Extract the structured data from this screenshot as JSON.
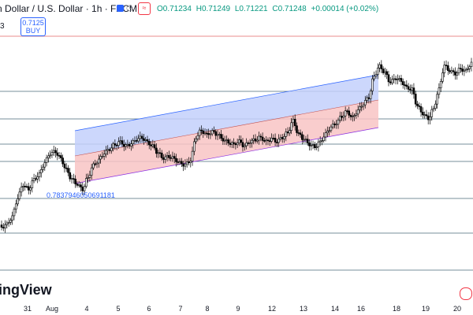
{
  "header": {
    "symbol": "n Dollar / U.S. Dollar · 1h · FXCM",
    "ohlc": {
      "open": "O0.71234",
      "high": "H0.71249",
      "low": "L0.71221",
      "close": "C0.71248",
      "change": "+0.00014 (+0.02%)"
    },
    "side_digit": "3",
    "buy_price": "0.7125",
    "buy_label": "BUY"
  },
  "annotations": {
    "low_value": "0.7837946050691181"
  },
  "watermark": "ingView",
  "colors": {
    "up": "#089981",
    "down": "#f23645",
    "candle": "#000000",
    "channel_upper_fill": "#c3d0fb",
    "channel_lower_fill": "#f8c4c4",
    "channel_border": "#8a2be2",
    "hline": "#4a6a7a",
    "top_line": "#e06666"
  },
  "chart_data": {
    "type": "candlestick",
    "x_tick_labels": [
      "31",
      "Aug",
      "4",
      "5",
      "6",
      "7",
      "8",
      "9",
      "12",
      "13",
      "14",
      "16",
      "18",
      "19",
      "20"
    ],
    "horizontal_levels": [
      "top",
      "l1",
      "l2",
      "l3",
      "l4",
      "l5",
      "l6",
      "l7"
    ],
    "close_series": [
      0.4,
      0.5,
      0.8,
      1.6,
      2.2,
      2.0,
      2.4,
      2.6,
      3.1,
      3.5,
      3.6,
      3.3,
      2.8,
      2.4,
      2.2,
      2.0,
      2.5,
      3.0,
      3.2,
      3.5,
      3.7,
      3.9,
      4.0,
      3.8,
      3.9,
      4.1,
      4.2,
      4.0,
      3.8,
      3.5,
      3.3,
      3.4,
      3.3,
      3.1,
      3.0,
      3.2,
      4.2,
      4.5,
      4.3,
      4.4,
      4.3,
      4.1,
      4.0,
      3.9,
      4.0,
      3.8,
      4.0,
      4.1,
      4.2,
      4.0,
      4.1,
      4.0,
      4.2,
      4.4,
      4.9,
      4.3,
      4.1,
      3.9,
      3.8,
      4.0,
      4.3,
      4.6,
      4.8,
      5.1,
      5.3,
      5.0,
      5.3,
      5.6,
      5.9,
      6.8,
      7.2,
      6.9,
      6.5,
      6.7,
      6.6,
      6.3,
      6.2,
      5.5,
      5.2,
      5.0,
      5.4,
      6.2,
      7.2,
      7.0,
      6.9,
      7.1,
      7.0,
      7.3
    ]
  }
}
